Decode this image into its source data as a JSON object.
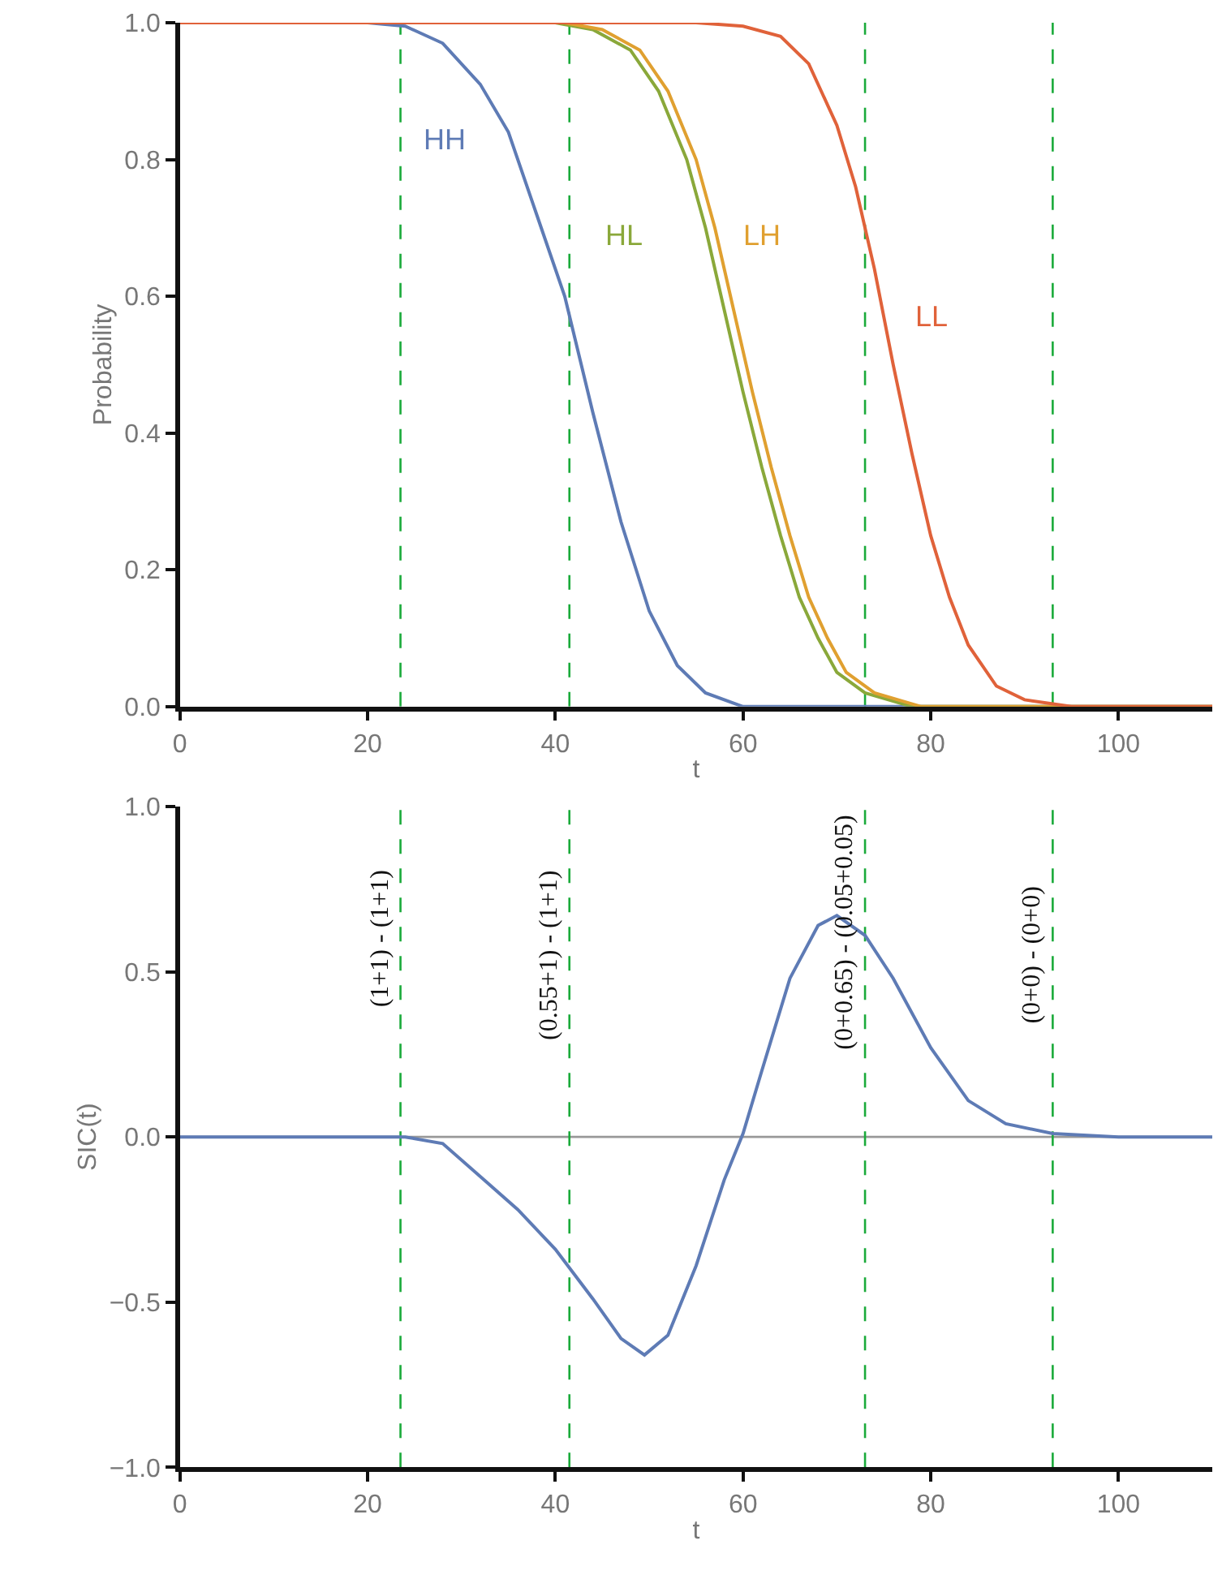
{
  "chart_data": [
    {
      "type": "line",
      "xlabel": "t",
      "ylabel": "Probability",
      "xlim": [
        0,
        110
      ],
      "xticks": [
        0,
        20,
        40,
        60,
        80,
        100
      ],
      "ylim": [
        0,
        1
      ],
      "yticks": [
        {
          "value": 0,
          "label": "0.0"
        },
        0.2,
        0.4,
        0.6,
        0.8,
        {
          "value": 1,
          "label": "1.0"
        }
      ],
      "grid": false,
      "legend": false,
      "marker": "none",
      "line_style": "solid",
      "series": [
        {
          "name": "HH",
          "color": "#5e7bb5",
          "x": [
            0,
            20,
            24,
            28,
            32,
            35,
            38,
            41,
            44,
            47,
            50,
            53,
            56,
            60,
            110
          ],
          "values": [
            1,
            1,
            0.995,
            0.97,
            0.91,
            0.84,
            0.72,
            0.6,
            0.43,
            0.27,
            0.14,
            0.06,
            0.02,
            0,
            0
          ]
        },
        {
          "name": "HL",
          "color": "#8aa83a",
          "x": [
            0,
            40,
            44,
            48,
            51,
            54,
            56,
            58,
            60,
            62,
            64,
            66,
            68,
            70,
            73,
            78,
            110
          ],
          "values": [
            1,
            1,
            0.99,
            0.96,
            0.9,
            0.8,
            0.7,
            0.58,
            0.46,
            0.35,
            0.25,
            0.16,
            0.1,
            0.05,
            0.02,
            0,
            0
          ]
        },
        {
          "name": "LH",
          "color": "#e0a030",
          "x": [
            0,
            41,
            45,
            49,
            52,
            55,
            57,
            59,
            61,
            63,
            65,
            67,
            69,
            71,
            74,
            79,
            110
          ],
          "values": [
            1,
            1,
            0.99,
            0.96,
            0.9,
            0.8,
            0.7,
            0.58,
            0.46,
            0.35,
            0.25,
            0.16,
            0.1,
            0.05,
            0.02,
            0,
            0
          ]
        },
        {
          "name": "LL",
          "color": "#e0623a",
          "x": [
            0,
            55,
            60,
            64,
            67,
            70,
            72,
            74,
            76,
            78,
            80,
            82,
            84,
            87,
            90,
            95,
            110
          ],
          "values": [
            1,
            1,
            0.995,
            0.98,
            0.94,
            0.85,
            0.76,
            0.64,
            0.5,
            0.37,
            0.25,
            0.16,
            0.09,
            0.03,
            0.01,
            0,
            0
          ]
        }
      ],
      "ref_lines": [
        {
          "axis": "x",
          "value": 23.5,
          "color": "#1aaa3a",
          "line_style": "dashed"
        },
        {
          "axis": "x",
          "value": 41.5,
          "color": "#1aaa3a",
          "line_style": "dashed"
        },
        {
          "axis": "x",
          "value": 73,
          "color": "#1aaa3a",
          "line_style": "dashed"
        },
        {
          "axis": "x",
          "value": 93,
          "color": "#1aaa3a",
          "line_style": "dashed"
        }
      ]
    },
    {
      "type": "line",
      "xlabel": "t",
      "ylabel": "SIC(t)",
      "xlim": [
        0,
        110
      ],
      "xticks": [
        0,
        20,
        40,
        60,
        80,
        100
      ],
      "ylim": [
        -1,
        1
      ],
      "yticks": [
        {
          "value": -1,
          "label": "−1.0"
        },
        {
          "value": -0.5,
          "label": "−0.5"
        },
        {
          "value": 0,
          "label": "0.0"
        },
        0.5,
        {
          "value": 1,
          "label": "1.0"
        }
      ],
      "grid": false,
      "legend": false,
      "marker": "none",
      "line_style": "solid",
      "series": [
        {
          "color": "#5e7bb5",
          "x": [
            0,
            20,
            24,
            28,
            32.4,
            36,
            40,
            44,
            47,
            49.5,
            52,
            55,
            58,
            60,
            62,
            65,
            68,
            70,
            73,
            76,
            80,
            84,
            88,
            93,
            100,
            110
          ],
          "values": [
            0,
            0,
            0,
            -0.02,
            -0.13,
            -0.22,
            -0.34,
            -0.49,
            -0.61,
            -0.66,
            -0.6,
            -0.39,
            -0.13,
            0.01,
            0.2,
            0.48,
            0.64,
            0.67,
            0.61,
            0.48,
            0.27,
            0.11,
            0.04,
            0.01,
            0,
            0
          ]
        }
      ],
      "ref_lines": [
        {
          "axis": "y",
          "value": 0,
          "color": "#999999",
          "line_style": "solid"
        },
        {
          "axis": "x",
          "value": 23.5,
          "color": "#1aaa3a",
          "line_style": "dashed"
        },
        {
          "axis": "x",
          "value": 41.5,
          "color": "#1aaa3a",
          "line_style": "dashed"
        },
        {
          "axis": "x",
          "value": 73,
          "color": "#1aaa3a",
          "line_style": "dashed"
        },
        {
          "axis": "x",
          "value": 93,
          "color": "#1aaa3a",
          "line_style": "dashed"
        }
      ],
      "annotations": [
        {
          "text": "(1+1) - (1+1)",
          "x": 23.5,
          "y": 0.6
        },
        {
          "text": "(0.55+1) - (1+1)",
          "x": 41.5,
          "y": 0.55
        },
        {
          "text": "(0+0.65) - (0.05+0.05)",
          "x": 73,
          "y": 0.62
        },
        {
          "text": "(0+0) - (0+0)",
          "x": 93,
          "y": 0.55
        }
      ]
    }
  ]
}
